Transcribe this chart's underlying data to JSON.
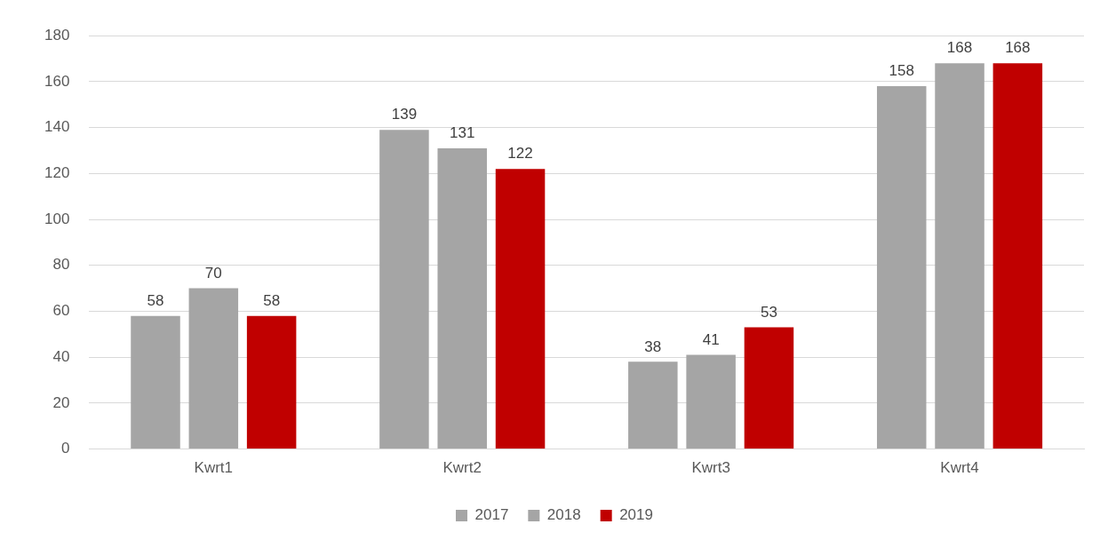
{
  "chart_data": {
    "type": "bar",
    "categories": [
      "Kwrt1",
      "Kwrt2",
      "Kwrt3",
      "Kwrt4"
    ],
    "series": [
      {
        "name": "2017",
        "color": "#a5a5a5",
        "values": [
          58,
          139,
          38,
          158
        ]
      },
      {
        "name": "2018",
        "color": "#a5a5a5",
        "values": [
          70,
          131,
          41,
          168
        ]
      },
      {
        "name": "2019",
        "color": "#c00000",
        "values": [
          58,
          122,
          53,
          168
        ]
      }
    ],
    "ylim": [
      0,
      180
    ],
    "yticks": [
      0,
      20,
      40,
      60,
      80,
      100,
      120,
      140,
      160,
      180
    ],
    "grid": "y",
    "legend": "bottom",
    "data_labels": true
  }
}
